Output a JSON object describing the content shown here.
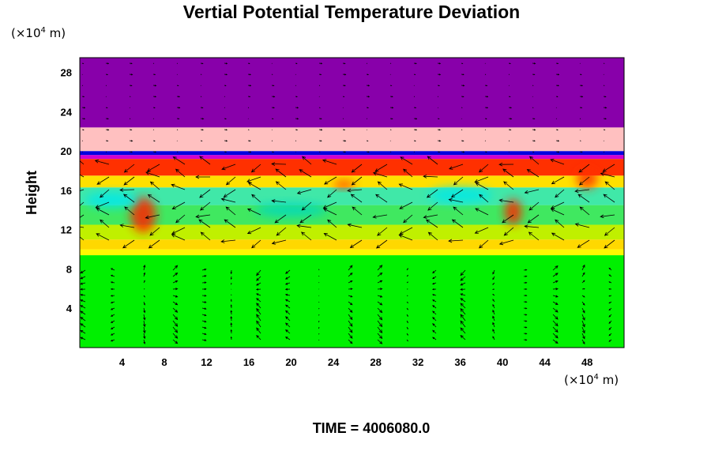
{
  "chart_data": {
    "type": "heatmap",
    "title": "Vertial Potential Temperature Deviation",
    "ylabel": "Height",
    "xlabel": "",
    "x_unit": {
      "prefix": "(×10",
      "exp": "4",
      "suffix": " m)"
    },
    "y_unit": {
      "prefix": "(×10",
      "exp": "4",
      "suffix": " m)"
    },
    "time_label": "TIME = 4006080.0",
    "xlim": [
      0,
      51.5
    ],
    "ylim": [
      0,
      29.5
    ],
    "x_ticks": [
      4,
      8,
      12,
      16,
      20,
      24,
      28,
      32,
      36,
      40,
      44,
      48
    ],
    "y_ticks": [
      4,
      8,
      12,
      16,
      20,
      24,
      28
    ],
    "overlay": "wind vectors (arrows)",
    "bands": [
      {
        "y0": 0,
        "y1": 9.4,
        "color": "#00f000"
      },
      {
        "y0": 9.4,
        "y1": 10.0,
        "color": "#fff800"
      },
      {
        "y0": 10.0,
        "y1": 11.0,
        "color": "#ffd800"
      },
      {
        "y0": 11.0,
        "y1": 12.5,
        "color": "#c0f000"
      },
      {
        "y0": 12.5,
        "y1": 14.5,
        "color": "#40e860"
      },
      {
        "y0": 14.5,
        "y1": 16.3,
        "color": "#40e8a8"
      },
      {
        "y0": 16.3,
        "y1": 17.5,
        "color": "#ffe000"
      },
      {
        "y0": 17.5,
        "y1": 19.2,
        "color": "#ff3000"
      },
      {
        "y0": 19.2,
        "y1": 19.6,
        "color": "#d000d0"
      },
      {
        "y0": 19.6,
        "y1": 20.0,
        "color": "#0000e0"
      },
      {
        "y0": 20.0,
        "y1": 22.4,
        "color": "#ffc0c0"
      },
      {
        "y0": 22.4,
        "y1": 29.5,
        "color": "#8800aa"
      }
    ],
    "patches": [
      {
        "x": 6,
        "y": 13.5,
        "rx": 1.2,
        "ry": 1.8,
        "color": "#ff2000"
      },
      {
        "x": 41,
        "y": 13.8,
        "rx": 0.8,
        "ry": 1.3,
        "color": "#ff2000"
      },
      {
        "x": 25,
        "y": 16.6,
        "rx": 1.0,
        "ry": 0.4,
        "color": "#ff3000"
      },
      {
        "x": 48,
        "y": 17.2,
        "rx": 1.0,
        "ry": 1.0,
        "color": "#ff3000"
      },
      {
        "x": 3,
        "y": 15.0,
        "rx": 2.5,
        "ry": 0.8,
        "color": "#00e8e8"
      },
      {
        "x": 36,
        "y": 15.5,
        "rx": 3.0,
        "ry": 0.8,
        "color": "#00e8e8"
      },
      {
        "x": 20,
        "y": 14.0,
        "rx": 3.5,
        "ry": 0.7,
        "color": "#00d8c0"
      }
    ]
  }
}
